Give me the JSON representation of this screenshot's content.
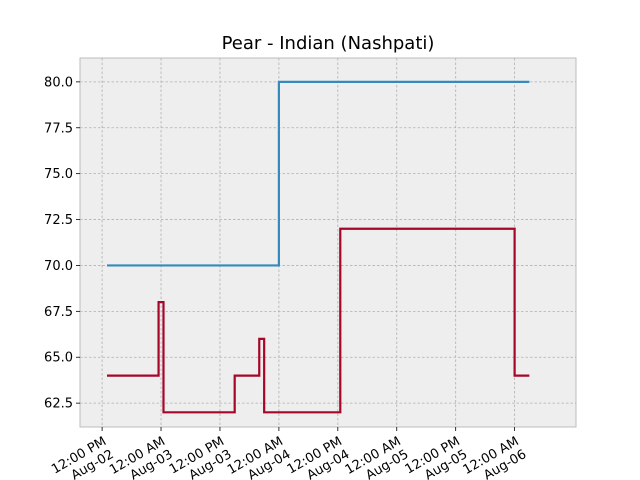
{
  "chart_data": {
    "type": "line",
    "step": "post",
    "title": "Pear - Indian (Nashpati)",
    "xlabel": "",
    "ylabel": "",
    "x_axis": "datetime",
    "xlim": [
      "2023-08-02T07:30",
      "2023-08-06T12:30"
    ],
    "ylim": [
      61.2,
      81.3
    ],
    "grid": true,
    "legend": "none",
    "y_ticks": [
      62.5,
      65.0,
      67.5,
      70.0,
      72.5,
      75.0,
      77.5,
      80.0
    ],
    "y_tick_labels": [
      "62.5",
      "65.0",
      "67.5",
      "70.0",
      "72.5",
      "75.0",
      "77.5",
      "80.0"
    ],
    "x_ticks": [
      {
        "t": "2023-08-02T12:00",
        "line1": "12:00 PM",
        "line2": "Aug-02"
      },
      {
        "t": "2023-08-03T00:00",
        "line1": "12:00 AM",
        "line2": "Aug-03"
      },
      {
        "t": "2023-08-03T12:00",
        "line1": "12:00 PM",
        "line2": "Aug-03"
      },
      {
        "t": "2023-08-04T00:00",
        "line1": "12:00 AM",
        "line2": "Aug-04"
      },
      {
        "t": "2023-08-04T12:00",
        "line1": "12:00 PM",
        "line2": "Aug-04"
      },
      {
        "t": "2023-08-05T00:00",
        "line1": "12:00 AM",
        "line2": "Aug-05"
      },
      {
        "t": "2023-08-05T12:00",
        "line1": "12:00 PM",
        "line2": "Aug-05"
      },
      {
        "t": "2023-08-06T00:00",
        "line1": "12:00 AM",
        "line2": "Aug-06"
      }
    ],
    "series": [
      {
        "color": "#348abd",
        "points": [
          {
            "x": "2023-08-02T13:00",
            "y": 70.0
          },
          {
            "x": "2023-08-04T00:00",
            "y": 80.0
          },
          {
            "x": "2023-08-06T03:00",
            "y": 80.0
          }
        ]
      },
      {
        "color": "#a60628",
        "points": [
          {
            "x": "2023-08-02T13:00",
            "y": 64.0
          },
          {
            "x": "2023-08-02T23:30",
            "y": 68.0
          },
          {
            "x": "2023-08-03T00:30",
            "y": 62.0
          },
          {
            "x": "2023-08-03T15:00",
            "y": 64.0
          },
          {
            "x": "2023-08-03T20:00",
            "y": 66.0
          },
          {
            "x": "2023-08-03T21:00",
            "y": 62.0
          },
          {
            "x": "2023-08-04T12:30",
            "y": 72.0
          },
          {
            "x": "2023-08-06T00:00",
            "y": 64.0
          },
          {
            "x": "2023-08-06T03:00",
            "y": 64.0
          }
        ]
      }
    ]
  }
}
